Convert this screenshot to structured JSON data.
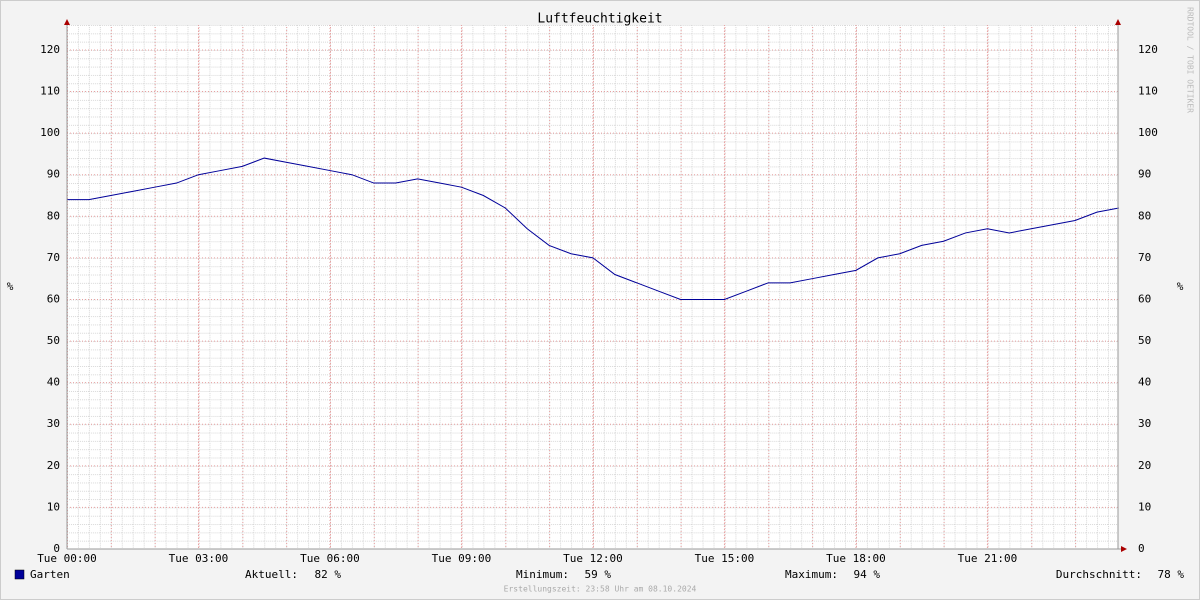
{
  "chart_data": {
    "type": "line",
    "title": "Luftfeuchtigkeit",
    "y_label": "%",
    "y2_label": "%",
    "watermark": "RRDTOOL / TOBI OETIKER",
    "footer": "Erstellungszeit: 23:58 Uhr am 08.10.2024",
    "x": [
      0,
      0.5,
      1,
      1.5,
      2,
      2.5,
      3,
      3.5,
      4,
      4.5,
      5,
      5.5,
      6,
      6.5,
      7,
      7.5,
      8,
      8.5,
      9,
      9.5,
      10,
      10.5,
      11,
      11.5,
      12,
      12.5,
      13,
      13.5,
      14,
      14.5,
      15,
      15.5,
      16,
      16.5,
      17,
      17.5,
      18,
      18.5,
      19,
      19.5,
      20,
      20.5,
      21,
      21.5,
      22,
      22.5,
      23,
      23.5,
      24
    ],
    "series": [
      {
        "name": "Garten",
        "color": "#000099",
        "values": [
          84,
          84,
          85,
          86,
          87,
          88,
          90,
          91,
          92,
          94,
          93,
          92,
          91,
          90,
          88,
          88,
          89,
          88,
          87,
          85,
          82,
          77,
          73,
          71,
          70,
          66,
          64,
          62,
          60,
          60,
          60,
          62,
          64,
          64,
          65,
          66,
          67,
          70,
          71,
          73,
          74,
          76,
          77,
          76,
          77,
          78,
          79,
          81,
          82
        ]
      }
    ],
    "legend_stats": [
      {
        "label": "Aktuell:",
        "value": "82 %"
      },
      {
        "label": "Minimum:",
        "value": "59 %"
      },
      {
        "label": "Maximum:",
        "value": "94 %"
      },
      {
        "label": "Durchschnitt:",
        "value": "78 %"
      }
    ],
    "xlim": [
      0,
      24
    ],
    "xticks": [
      {
        "value": 0,
        "label": "Tue 00:00"
      },
      {
        "value": 3,
        "label": "Tue 03:00"
      },
      {
        "value": 6,
        "label": "Tue 06:00"
      },
      {
        "value": 9,
        "label": "Tue 09:00"
      },
      {
        "value": 12,
        "label": "Tue 12:00"
      },
      {
        "value": 15,
        "label": "Tue 15:00"
      },
      {
        "value": 18,
        "label": "Tue 18:00"
      },
      {
        "value": 21,
        "label": "Tue 21:00"
      }
    ],
    "ylim": [
      0,
      126
    ],
    "yticks": [
      0,
      10,
      20,
      30,
      40,
      50,
      60,
      70,
      80,
      90,
      100,
      110,
      120
    ],
    "grid": true
  }
}
